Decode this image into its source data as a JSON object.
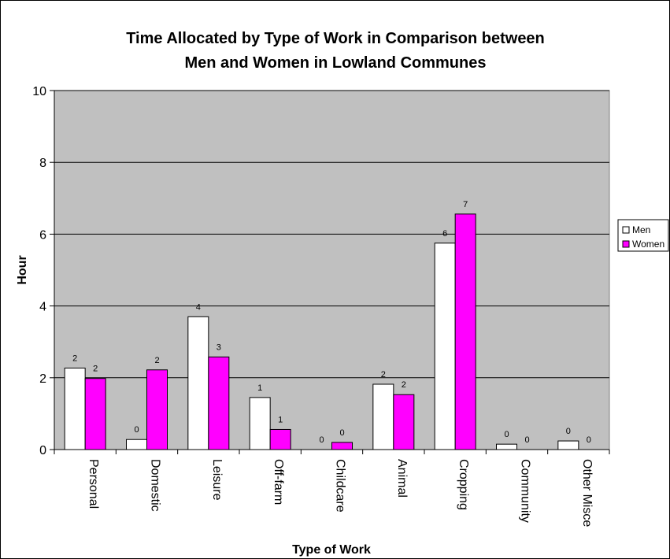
{
  "chart_data": {
    "type": "bar",
    "title_line1": "Time Allocated by Type of Work in Comparison between",
    "title_line2": "Men and Women in Lowland Communes",
    "xlabel": "Type of Work",
    "ylabel": "Hour",
    "ylim": [
      0,
      10
    ],
    "yticks": [
      0,
      2,
      4,
      6,
      8,
      10
    ],
    "categories": [
      "Personal",
      "Domestic",
      "Leisure",
      "Off-farm",
      "Childcare",
      "Animal",
      "Cropping",
      "Community",
      "Other Misce"
    ],
    "series": [
      {
        "name": "Men",
        "color": "#ffffff",
        "values": [
          2.27,
          0.28,
          3.7,
          1.45,
          0.0,
          1.82,
          5.75,
          0.15,
          0.24
        ],
        "labels": [
          "2",
          "0",
          "4",
          "1",
          "0",
          "2",
          "6",
          "0",
          "0"
        ]
      },
      {
        "name": "Women",
        "color": "#ff00ff",
        "values": [
          1.98,
          2.22,
          2.58,
          0.56,
          0.2,
          1.53,
          6.56,
          0.0,
          0.0
        ],
        "labels": [
          "2",
          "2",
          "3",
          "1",
          "0",
          "2",
          "7",
          "0",
          "0"
        ]
      }
    ],
    "grid": true,
    "plot_background": "#c0c0c0",
    "legend_position": "right"
  }
}
